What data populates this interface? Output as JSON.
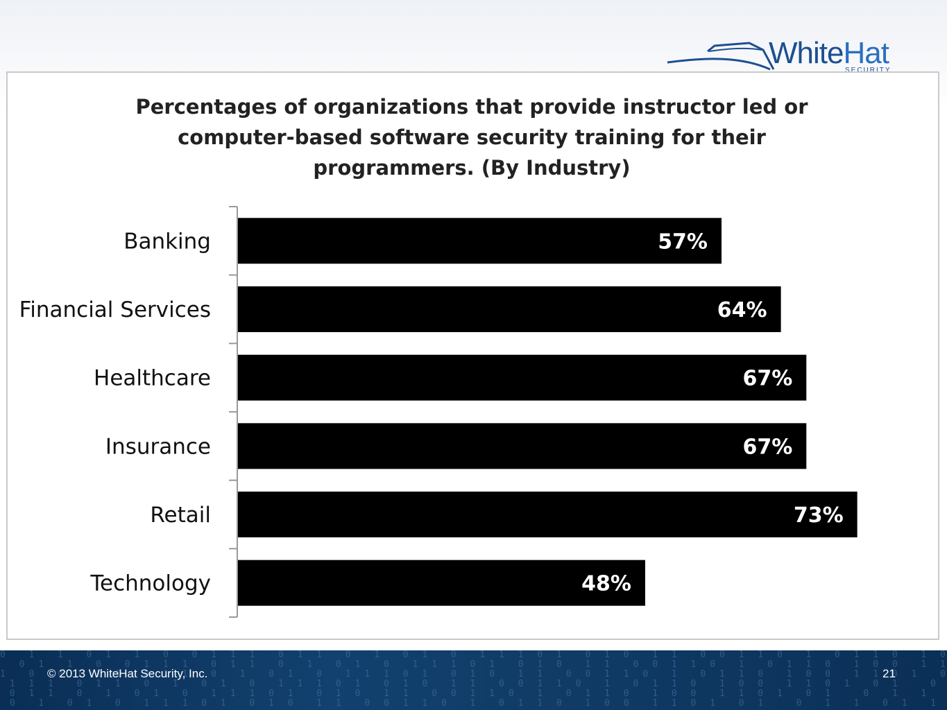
{
  "brand": {
    "name_part1": "White",
    "name_part2": "Hat",
    "tagline": "SECURITY",
    "color": "#1d4f91"
  },
  "footer": {
    "copyright": "© 2013 WhiteHat Security, Inc.",
    "page_number": "21",
    "binary_pattern": "0  1  1  0 1  1  0  0 1 1 1  0 1 1  0  1  0 1  0  1 1 1 0 1  0 1 0  1 1  0 0 1 1 0  1  0 1 1 0  1 0 0  1 1 0 1  0 1"
  },
  "chart_data": {
    "type": "bar",
    "orientation": "horizontal",
    "title": "Percentages of organizations that provide instructor led or computer-based software security training for their programmers. (By Industry)",
    "title_lines": [
      "Percentages of organizations that provide instructor led or",
      "computer-based software security training for their",
      "programmers. (By Industry)"
    ],
    "categories": [
      "Banking",
      "Financial Services",
      "Healthcare",
      "Insurance",
      "Retail",
      "Technology"
    ],
    "values": [
      57,
      64,
      67,
      67,
      73,
      48
    ],
    "value_labels": [
      "57%",
      "64%",
      "67%",
      "67%",
      "73%",
      "48%"
    ],
    "unit": "%",
    "xlim": [
      0,
      80
    ],
    "bar_color": "#000000",
    "value_label_color": "#ffffff",
    "grid": false,
    "legend": "none"
  }
}
